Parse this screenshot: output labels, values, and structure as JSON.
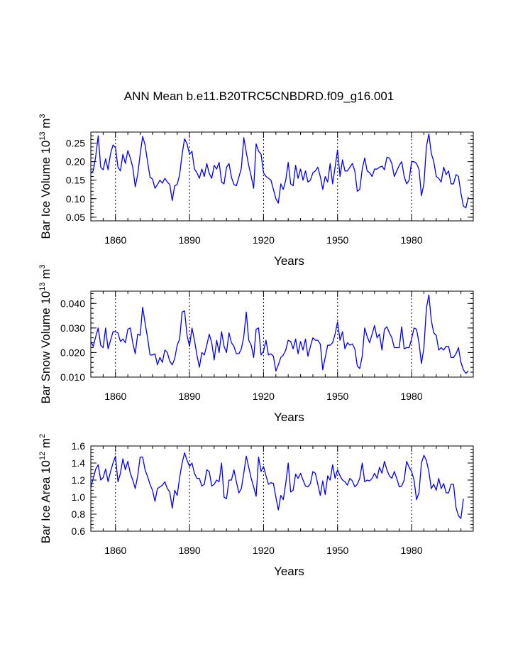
{
  "figure_title": "ANN Mean b.e11.B20TRC5CNBDRD.f09_g16.001",
  "chart_data": [
    {
      "type": "line",
      "title": "ANN Mean b.e11.B20TRC5CNBDRD.f09_g16.001",
      "xlabel": "Years",
      "ylabel": "Bar Ice Volume 10",
      "ylabel_exp": "13",
      "ylabel_unit": " m",
      "ylabel_unit_exp": "3",
      "xlim": [
        1850,
        2005
      ],
      "ylim": [
        0.04,
        0.28
      ],
      "xticks": [
        1860,
        1890,
        1920,
        1950,
        1980
      ],
      "xtick_labels": [
        "1860",
        "1890",
        "1920",
        "1950",
        "1980"
      ],
      "yticks": [
        0.05,
        0.1,
        0.15,
        0.2,
        0.25
      ],
      "ytick_labels": [
        "0.05",
        "0.10",
        "0.15",
        "0.20",
        "0.25"
      ],
      "grid": "vertical dashed at major x ticks",
      "series": [
        {
          "name": "Bar Ice Volume",
          "color": "#0000ff",
          "x_start": 1850,
          "x_step": 1,
          "values": [
            0.17,
            0.175,
            0.215,
            0.27,
            0.185,
            0.178,
            0.208,
            0.178,
            0.222,
            0.245,
            0.238,
            0.185,
            0.175,
            0.22,
            0.195,
            0.23,
            0.21,
            0.185,
            0.132,
            0.165,
            0.22,
            0.268,
            0.245,
            0.2,
            0.158,
            0.153,
            0.128,
            0.138,
            0.15,
            0.142,
            0.155,
            0.145,
            0.138,
            0.095,
            0.135,
            0.138,
            0.165,
            0.22,
            0.262,
            0.248,
            0.22,
            0.228,
            0.18,
            0.17,
            0.155,
            0.18,
            0.16,
            0.195,
            0.168,
            0.155,
            0.19,
            0.18,
            0.198,
            0.145,
            0.14,
            0.185,
            0.195,
            0.158,
            0.138,
            0.135,
            0.158,
            0.182,
            0.265,
            0.225,
            0.19,
            0.16,
            0.128,
            0.248,
            0.228,
            0.22,
            0.17,
            0.16,
            0.155,
            0.15,
            0.125,
            0.1,
            0.088,
            0.14,
            0.125,
            0.15,
            0.198,
            0.14,
            0.135,
            0.19,
            0.155,
            0.18,
            0.15,
            0.175,
            0.145,
            0.15,
            0.17,
            0.175,
            0.185,
            0.16,
            0.125,
            0.16,
            0.145,
            0.195,
            0.14,
            0.185,
            0.232,
            0.16,
            0.205,
            0.175,
            0.175,
            0.185,
            0.195,
            0.175,
            0.12,
            0.125,
            0.18,
            0.21,
            0.175,
            0.17,
            0.16,
            0.18,
            0.18,
            0.185,
            0.188,
            0.178,
            0.212,
            0.21,
            0.195,
            0.16,
            0.175,
            0.19,
            0.2,
            0.16,
            0.14,
            0.15,
            0.2,
            0.2,
            0.195,
            0.18,
            0.108,
            0.14,
            0.24,
            0.275,
            0.222,
            0.2,
            0.16,
            0.155,
            0.145,
            0.185,
            0.165,
            0.175,
            0.14,
            0.14,
            0.165,
            0.16,
            0.115,
            0.08,
            0.075,
            0.105
          ]
        }
      ]
    },
    {
      "type": "line",
      "xlabel": "Years",
      "ylabel": "Bar Snow Volume 10",
      "ylabel_exp": "13",
      "ylabel_unit": " m",
      "ylabel_unit_exp": "3",
      "xlim": [
        1850,
        2005
      ],
      "ylim": [
        0.01,
        0.045
      ],
      "xticks": [
        1860,
        1890,
        1920,
        1950,
        1980
      ],
      "xtick_labels": [
        "1860",
        "1890",
        "1920",
        "1950",
        "1980"
      ],
      "yticks": [
        0.01,
        0.02,
        0.03,
        0.04
      ],
      "ytick_labels": [
        "0.010",
        "0.020",
        "0.030",
        "0.040"
      ],
      "grid": "vertical dashed at major x ticks",
      "series": [
        {
          "name": "Bar Snow Volume",
          "color": "#0000ff",
          "x_start": 1850,
          "x_step": 1,
          "values": [
            0.0245,
            0.0225,
            0.0265,
            0.03,
            0.023,
            0.022,
            0.03,
            0.0215,
            0.025,
            0.0285,
            0.0285,
            0.028,
            0.0245,
            0.0255,
            0.024,
            0.0295,
            0.03,
            0.024,
            0.0195,
            0.0275,
            0.027,
            0.0385,
            0.032,
            0.026,
            0.019,
            0.019,
            0.0195,
            0.015,
            0.018,
            0.016,
            0.021,
            0.02,
            0.0165,
            0.015,
            0.0175,
            0.023,
            0.0255,
            0.0365,
            0.037,
            0.027,
            0.0225,
            0.03,
            0.025,
            0.019,
            0.014,
            0.02,
            0.019,
            0.023,
            0.0275,
            0.024,
            0.017,
            0.025,
            0.02,
            0.0285,
            0.0225,
            0.02,
            0.028,
            0.024,
            0.0225,
            0.0195,
            0.0195,
            0.0215,
            0.0265,
            0.0365,
            0.025,
            0.023,
            0.018,
            0.0295,
            0.03,
            0.019,
            0.0205,
            0.025,
            0.019,
            0.0195,
            0.0185,
            0.0125,
            0.015,
            0.018,
            0.019,
            0.021,
            0.025,
            0.0245,
            0.0215,
            0.0255,
            0.0195,
            0.0245,
            0.021,
            0.0255,
            0.0185,
            0.0225,
            0.026,
            0.025,
            0.025,
            0.0235,
            0.013,
            0.018,
            0.023,
            0.023,
            0.024,
            0.0275,
            0.0325,
            0.025,
            0.0285,
            0.0215,
            0.024,
            0.023,
            0.0235,
            0.0215,
            0.0145,
            0.0135,
            0.0185,
            0.03,
            0.0265,
            0.024,
            0.0275,
            0.031,
            0.026,
            0.0275,
            0.021,
            0.0295,
            0.0305,
            0.028,
            0.026,
            0.022,
            0.022,
            0.022,
            0.0305,
            0.0215,
            0.022,
            0.022,
            0.0255,
            0.03,
            0.0295,
            0.024,
            0.0155,
            0.022,
            0.038,
            0.0435,
            0.033,
            0.028,
            0.027,
            0.021,
            0.022,
            0.021,
            0.0225,
            0.0225,
            0.018,
            0.018,
            0.0195,
            0.022,
            0.016,
            0.013,
            0.0115,
            0.0125
          ]
        }
      ]
    },
    {
      "type": "line",
      "xlabel": "Years",
      "ylabel": "Bar Ice Area 10",
      "ylabel_exp": "12",
      "ylabel_unit": " m",
      "ylabel_unit_exp": "2",
      "xlim": [
        1850,
        2005
      ],
      "ylim": [
        0.6,
        1.6
      ],
      "xticks": [
        1860,
        1890,
        1920,
        1950,
        1980
      ],
      "xtick_labels": [
        "1860",
        "1890",
        "1920",
        "1950",
        "1980"
      ],
      "yticks": [
        0.6,
        0.8,
        1.0,
        1.2,
        1.4,
        1.6
      ],
      "ytick_labels": [
        "0.6",
        "0.8",
        "1.0",
        "1.2",
        "1.4",
        "1.6"
      ],
      "grid": "vertical dashed at major x ticks",
      "series": [
        {
          "name": "Bar Ice Area",
          "color": "#0000ff",
          "x_start": 1850,
          "x_step": 1,
          "values": [
            1.12,
            1.22,
            1.33,
            1.38,
            1.2,
            1.23,
            1.33,
            1.18,
            1.3,
            1.4,
            1.48,
            1.18,
            1.28,
            1.45,
            1.32,
            1.42,
            1.28,
            1.2,
            1.1,
            1.25,
            1.47,
            1.47,
            1.32,
            1.24,
            1.15,
            1.08,
            0.95,
            1.1,
            1.12,
            1.14,
            1.18,
            1.1,
            1.06,
            0.87,
            1.08,
            1.02,
            1.23,
            1.4,
            1.52,
            1.43,
            1.36,
            1.4,
            1.28,
            1.22,
            1.22,
            1.13,
            1.15,
            1.32,
            1.3,
            1.13,
            1.15,
            1.2,
            1.18,
            1.4,
            1.0,
            0.98,
            1.2,
            1.2,
            1.32,
            1.18,
            1.05,
            1.1,
            1.28,
            1.48,
            1.35,
            1.22,
            1.12,
            1.01,
            1.47,
            1.3,
            1.36,
            1.25,
            1.15,
            1.17,
            1.16,
            1.0,
            0.85,
            1.02,
            0.97,
            1.16,
            1.4,
            1.06,
            1.08,
            1.27,
            1.22,
            1.28,
            1.2,
            1.13,
            1.12,
            1.16,
            1.3,
            1.28,
            1.15,
            1.02,
            1.19,
            1.03,
            1.25,
            1.2,
            1.38,
            1.22,
            1.32,
            1.25,
            1.2,
            1.18,
            1.14,
            1.22,
            1.19,
            1.12,
            1.15,
            1.22,
            1.4,
            1.18,
            1.2,
            1.19,
            1.22,
            1.28,
            1.22,
            1.35,
            1.28,
            1.42,
            1.32,
            1.25,
            1.22,
            1.3,
            1.22,
            1.12,
            1.13,
            1.2,
            1.42,
            1.35,
            1.3,
            1.2,
            0.97,
            1.05,
            1.4,
            1.49,
            1.43,
            1.3,
            1.1,
            1.15,
            1.08,
            1.22,
            1.1,
            1.16,
            1.05,
            1.05,
            1.15,
            1.15,
            0.88,
            0.78,
            0.75,
            0.98
          ]
        }
      ]
    }
  ]
}
